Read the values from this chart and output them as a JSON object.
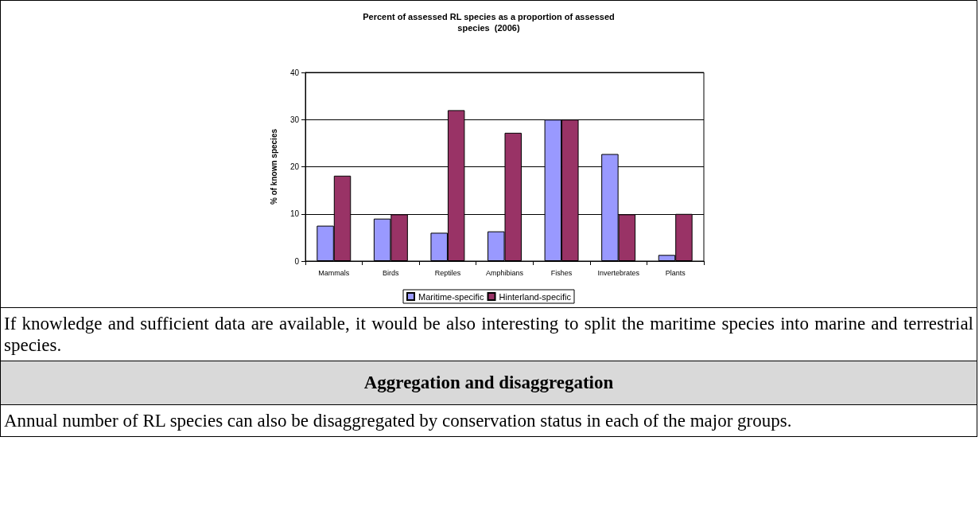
{
  "chart_data": {
    "type": "bar",
    "title": "Percent of assessed RL species as a proportion of assessed\nspecies  (2006)",
    "ylabel": "% of known species",
    "categories": [
      "Mammals",
      "Birds",
      "Reptiles",
      "Amphibians",
      "Fishes",
      "Invertebrates",
      "Plants"
    ],
    "series": [
      {
        "name": "Maritime-specific",
        "color": "#9999ff",
        "values": [
          7.5,
          9,
          6,
          6.3,
          30,
          22.7,
          1.3
        ]
      },
      {
        "name": "Hinterland-specific",
        "color": "#993366",
        "values": [
          18.1,
          9.9,
          32,
          27.2,
          30,
          9.9,
          10
        ]
      }
    ],
    "ylim": [
      0,
      40
    ],
    "yticks": [
      0,
      10,
      20,
      30,
      40
    ],
    "grid": "y",
    "legend": "bottom",
    "annotations": [
      "If knowledge and sufficient data are available, it would be also interesting to split the maritime species into marine and terrestrial species.",
      "Aggregation and disaggregation",
      "Annual number of RL species can also be disaggregated by conservation status in each of the major groups."
    ]
  }
}
